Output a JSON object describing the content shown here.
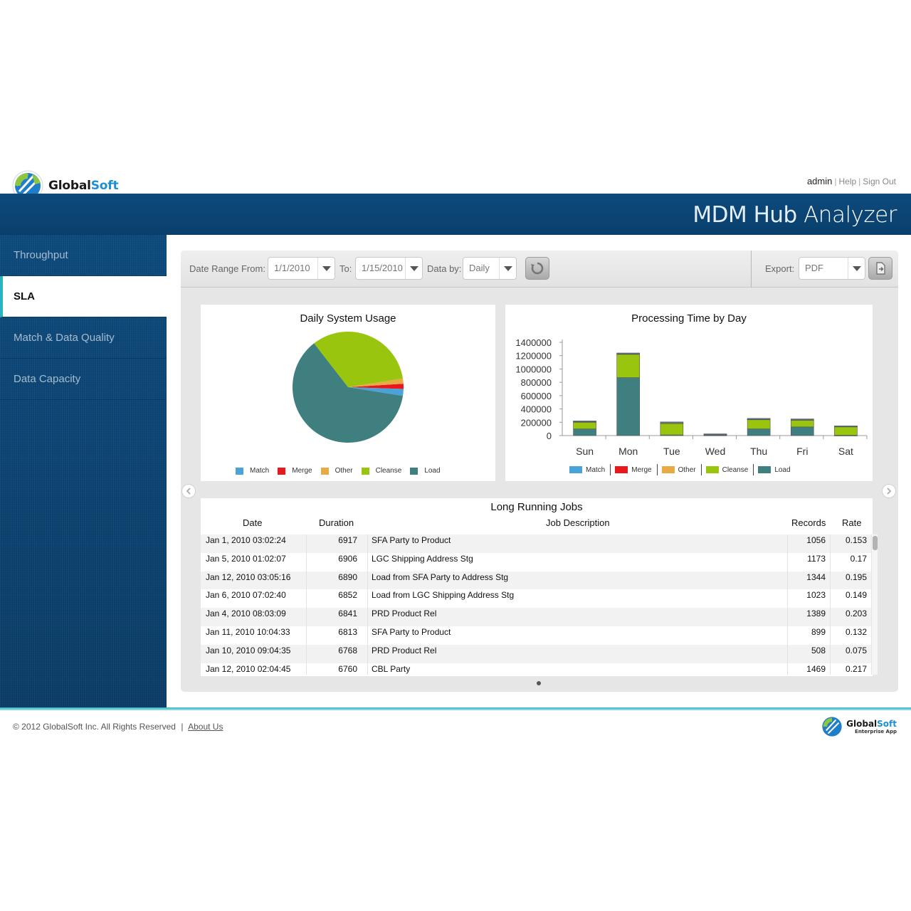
{
  "brand": {
    "name_part1": "Global",
    "name_part2": "Soft"
  },
  "user_links": {
    "user": "admin",
    "help": "Help",
    "sign_out": "Sign Out"
  },
  "app_title": {
    "part1": "MDM Hub ",
    "part2": "Analyzer"
  },
  "sidebar": {
    "items": [
      {
        "label": "Throughput",
        "active": false
      },
      {
        "label": "SLA",
        "active": true
      },
      {
        "label": "Match & Data Quality",
        "active": false
      },
      {
        "label": "Data Capacity",
        "active": false
      }
    ]
  },
  "toolbar": {
    "date_from_label": "Date Range From:",
    "date_from_value": "1/1/2010",
    "to_label": "To:",
    "date_to_value": "1/15/2010",
    "data_by_label": "Data by:",
    "data_by_value": "Daily",
    "export_label": "Export:",
    "export_value": "PDF"
  },
  "legend_items": [
    "Match",
    "Merge",
    "Other",
    "Cleanse",
    "Load"
  ],
  "colors": {
    "Match": "#4aa3d8",
    "Merge": "#e8191d",
    "Other": "#e9aa46",
    "Cleanse": "#9ac50e",
    "Load": "#3f7f7f"
  },
  "chart_data": [
    {
      "type": "pie",
      "title": "Daily System Usage",
      "categories": [
        "Match",
        "Merge",
        "Other",
        "Cleanse",
        "Load"
      ],
      "values": [
        2,
        1.5,
        1.5,
        33,
        62
      ],
      "legend": "bottom"
    },
    {
      "type": "bar",
      "stacked": true,
      "title": "Processing Time by Day",
      "categories": [
        "Sun",
        "Mon",
        "Tue",
        "Wed",
        "Thu",
        "Fri",
        "Sat"
      ],
      "ylim": [
        0,
        1400000
      ],
      "yticks": [
        "1400000",
        "1200000",
        "1000000",
        "800000",
        "600000",
        "400000",
        "200000",
        "0"
      ],
      "series": [
        {
          "name": "Load",
          "values": [
            100000,
            870000,
            10000,
            8000,
            100000,
            130000,
            5000
          ]
        },
        {
          "name": "Cleanse",
          "values": [
            100000,
            350000,
            170000,
            0,
            140000,
            100000,
            130000
          ]
        },
        {
          "name": "Other",
          "values": [
            10000,
            10000,
            10000,
            5000,
            8000,
            10000,
            5000
          ]
        },
        {
          "name": "Merge",
          "values": [
            5000,
            5000,
            10000,
            5000,
            5000,
            5000,
            3000
          ]
        },
        {
          "name": "Match",
          "values": [
            5000,
            5000,
            5000,
            8000,
            5000,
            5000,
            2000
          ]
        }
      ],
      "legend": "bottom"
    }
  ],
  "jobs": {
    "title": "Long Running Jobs",
    "columns": {
      "date": "Date",
      "duration": "Duration",
      "desc": "Job Description",
      "records": "Records",
      "rate": "Rate"
    },
    "rows": [
      {
        "date": "Jan 1, 2010 03:02:24",
        "duration": "6917",
        "desc": "SFA Party to Product",
        "records": "1056",
        "rate": "0.153"
      },
      {
        "date": "Jan 5, 2010 01:02:07",
        "duration": "6906",
        "desc": "LGC Shipping Address Stg",
        "records": "1173",
        "rate": "0.17"
      },
      {
        "date": "Jan 12, 2010 03:05:16",
        "duration": "6890",
        "desc": "Load from SFA Party to Address Stg",
        "records": "1344",
        "rate": "0.195"
      },
      {
        "date": "Jan 6, 2010 07:02:40",
        "duration": "6852",
        "desc": "Load from LGC Shipping Address Stg",
        "records": "1023",
        "rate": "0.149"
      },
      {
        "date": "Jan 4, 2010 08:03:09",
        "duration": "6841",
        "desc": "PRD Product Rel",
        "records": "1389",
        "rate": "0.203"
      },
      {
        "date": "Jan 11, 2010 10:04:33",
        "duration": "6813",
        "desc": "SFA Party to Product",
        "records": "899",
        "rate": "0.132"
      },
      {
        "date": "Jan 10, 2010 09:04:35",
        "duration": "6768",
        "desc": "PRD Product Rel",
        "records": "508",
        "rate": "0.075"
      },
      {
        "date": "Jan 12, 2010 02:04:45",
        "duration": "6760",
        "desc": "CBL Party",
        "records": "1469",
        "rate": "0.217"
      }
    ]
  },
  "footer": {
    "copyright": "© 2012 GlobalSoft Inc. All Rights Reserved",
    "separator": "|",
    "about": "About Us",
    "logo_part1": "Global",
    "logo_part2": "Soft",
    "logo_tagline": "Enterprise App"
  }
}
